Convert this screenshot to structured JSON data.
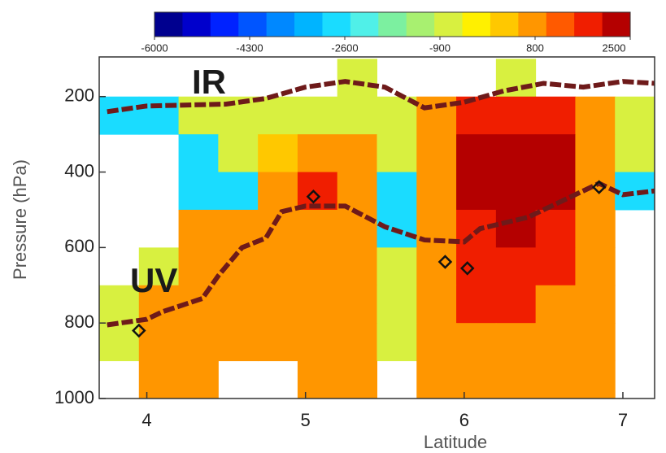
{
  "chart_data": {
    "type": "heatmap",
    "xlabel": "Latitude",
    "ylabel": "Pressure (hPa)",
    "annotations": [
      "IR",
      "UV"
    ],
    "xlim": [
      3.7,
      7.2
    ],
    "xticks": [
      4,
      5,
      6,
      7
    ],
    "ylim": [
      1000,
      95
    ],
    "yticks": [
      200,
      400,
      600,
      800,
      1000
    ],
    "clim": [
      -6000,
      2500
    ],
    "cticks": [
      -6000,
      -4300,
      -2600,
      -900,
      800,
      2500
    ],
    "colors": [
      "#00008f",
      "#0000cc",
      "#0022ff",
      "#0055ff",
      "#0088ff",
      "#00b4ff",
      "#1adcff",
      "#50f0e8",
      "#7cf0a0",
      "#a8f070",
      "#d8f040",
      "#fff000",
      "#ffc800",
      "#ff9600",
      "#ff5a00",
      "#f01e00",
      "#b40000"
    ],
    "x": [
      3.825,
      4.075,
      4.325,
      4.575,
      4.825,
      5.075,
      5.325,
      5.575,
      5.825,
      6.075,
      6.325,
      6.575,
      6.825,
      7.075
    ],
    "y": [
      150,
      250,
      350,
      450,
      550,
      650,
      750,
      850,
      950
    ],
    "z": [
      [
        null,
        null,
        null,
        null,
        null,
        null,
        -900,
        null,
        null,
        null,
        -900,
        null,
        null,
        null
      ],
      [
        -2600,
        -2600,
        -900,
        -900,
        -900,
        -900,
        -900,
        -900,
        800,
        1500,
        1500,
        1500,
        800,
        -900
      ],
      [
        null,
        null,
        -2600,
        -900,
        0,
        800,
        800,
        -900,
        800,
        2000,
        2000,
        2000,
        800,
        -900
      ],
      [
        null,
        null,
        -2600,
        -2600,
        800,
        1500,
        800,
        -2600,
        800,
        2000,
        2000,
        2000,
        800,
        -2600
      ],
      [
        null,
        null,
        800,
        800,
        800,
        800,
        800,
        -2600,
        800,
        1500,
        2000,
        1500,
        800,
        null
      ],
      [
        null,
        -900,
        800,
        800,
        800,
        800,
        800,
        -900,
        800,
        1500,
        1500,
        1500,
        800,
        null
      ],
      [
        -900,
        800,
        800,
        800,
        800,
        800,
        800,
        -900,
        800,
        1500,
        1500,
        800,
        800,
        null
      ],
      [
        -900,
        800,
        800,
        800,
        800,
        800,
        800,
        -900,
        800,
        800,
        800,
        800,
        800,
        null
      ],
      [
        null,
        800,
        800,
        null,
        null,
        800,
        800,
        null,
        800,
        800,
        800,
        800,
        800,
        null
      ]
    ],
    "series": [
      {
        "color": "#6e1a1a",
        "x": [
          3.75,
          4.0,
          4.5,
          4.75,
          5.0,
          5.25,
          5.5,
          5.75,
          6.0,
          6.25,
          6.5,
          6.75,
          7.0,
          7.2
        ],
        "y": [
          240,
          225,
          220,
          205,
          175,
          160,
          175,
          230,
          215,
          185,
          165,
          175,
          160,
          165
        ]
      },
      {
        "color": "#6e1a1a",
        "x": [
          3.75,
          4.0,
          4.1,
          4.35,
          4.45,
          4.6,
          4.75,
          4.85,
          5.0,
          5.25,
          5.5,
          5.75,
          6.0,
          6.1,
          6.4,
          6.6,
          6.85,
          7.0,
          7.2
        ],
        "y": [
          805,
          790,
          770,
          735,
          675,
          600,
          575,
          505,
          490,
          490,
          545,
          580,
          585,
          550,
          520,
          480,
          430,
          460,
          450
        ]
      }
    ],
    "points": {
      "x": [
        3.95,
        5.05,
        5.88,
        6.02,
        6.85
      ],
      "y": [
        820,
        465,
        638,
        655,
        440
      ]
    }
  }
}
